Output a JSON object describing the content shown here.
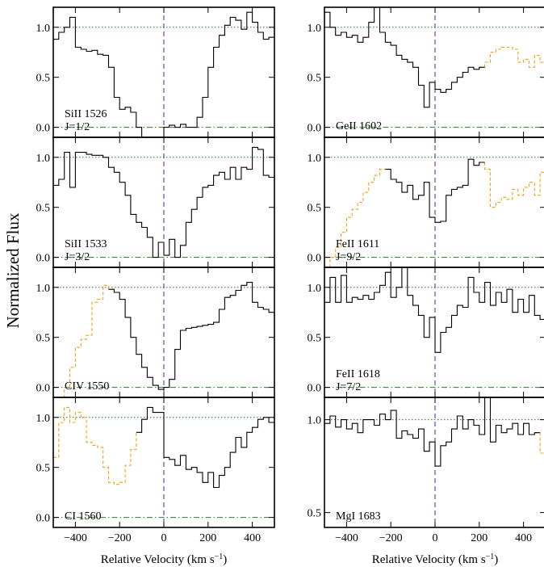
{
  "figure": {
    "ylabel": "Normalized Flux",
    "xlabel_main": "Relative Velocity (km s",
    "xlabel_sup": "−1",
    "xlabel_end": ")"
  },
  "chart_data": {
    "type": "line",
    "xlim": [
      -500,
      500
    ],
    "x_ticks": [
      -400,
      -200,
      0,
      200,
      400
    ],
    "x_tick_labels": [
      "−400",
      "−200",
      "0",
      "200",
      "400"
    ],
    "reference_lines": {
      "continuum": 1.0,
      "zero": 0.0,
      "velocity_zero": 0
    },
    "panels": [
      {
        "id": "siii1526",
        "column": 0,
        "row": 0,
        "label": "SiII 1526",
        "label2": "J=1/2",
        "ylim": [
          -0.1,
          1.2
        ],
        "yticks": [
          0.0,
          0.5,
          1.0
        ],
        "ytick_labels": [
          "0.0",
          "0.5",
          "1.0"
        ],
        "x": [
          -500,
          -475,
          -450,
          -425,
          -400,
          -375,
          -350,
          -325,
          -300,
          -275,
          -250,
          -225,
          -200,
          -175,
          -150,
          -125,
          -100,
          -75,
          -50,
          -25,
          0,
          25,
          50,
          75,
          100,
          125,
          150,
          175,
          200,
          225,
          250,
          275,
          300,
          325,
          350,
          375,
          400,
          425,
          450,
          475
        ],
        "y": [
          0.88,
          0.95,
          1.0,
          1.1,
          0.8,
          0.78,
          0.76,
          0.77,
          0.73,
          0.72,
          0.6,
          0.3,
          0.18,
          0.2,
          0.15,
          0.0,
          -0.1,
          -0.1,
          -0.1,
          -0.1,
          0.0,
          0.02,
          0.0,
          0.03,
          0.0,
          0.0,
          0.1,
          0.3,
          0.6,
          0.8,
          0.92,
          1.02,
          1.1,
          1.07,
          0.98,
          1.15,
          1.05,
          0.95,
          0.88,
          0.9
        ],
        "blend": []
      },
      {
        "id": "siii1533",
        "column": 0,
        "row": 1,
        "label": "SiII 1533",
        "label2": "J=3/2",
        "ylim": [
          -0.1,
          1.2
        ],
        "yticks": [
          0.0,
          0.5,
          1.0
        ],
        "ytick_labels": [
          "0.0",
          "0.5",
          "1.0"
        ],
        "x": [
          -500,
          -475,
          -450,
          -425,
          -400,
          -375,
          -350,
          -325,
          -300,
          -275,
          -250,
          -225,
          -200,
          -175,
          -150,
          -125,
          -100,
          -75,
          -50,
          -25,
          0,
          25,
          50,
          75,
          100,
          125,
          150,
          175,
          200,
          225,
          250,
          275,
          300,
          325,
          350,
          375,
          400,
          425,
          450,
          475
        ],
        "y": [
          0.72,
          0.78,
          1.05,
          0.7,
          1.05,
          1.05,
          1.03,
          1.02,
          1.02,
          1.0,
          0.9,
          0.85,
          0.75,
          0.62,
          0.43,
          0.35,
          0.3,
          0.2,
          0.0,
          0.15,
          0.02,
          0.18,
          0.0,
          0.12,
          0.35,
          0.48,
          0.6,
          0.7,
          0.72,
          0.82,
          0.85,
          0.78,
          0.9,
          0.78,
          0.9,
          0.88,
          1.1,
          1.08,
          0.82,
          0.8
        ],
        "blend": []
      },
      {
        "id": "civ1550",
        "column": 0,
        "row": 2,
        "label": "CIV 1550",
        "label2": "",
        "ylim": [
          -0.1,
          1.2
        ],
        "yticks": [
          0.0,
          0.5,
          1.0
        ],
        "ytick_labels": [
          "0.0",
          "0.5",
          "1.0"
        ],
        "x": [
          -250,
          -225,
          -200,
          -175,
          -150,
          -125,
          -100,
          -75,
          -50,
          -25,
          0,
          25,
          50,
          75,
          100,
          125,
          150,
          175,
          200,
          225,
          250,
          275,
          300,
          325,
          350,
          375,
          400,
          425,
          450,
          475
        ],
        "y": [
          0.98,
          0.95,
          0.88,
          0.7,
          0.5,
          0.33,
          0.2,
          0.1,
          0.02,
          -0.02,
          0.0,
          0.08,
          0.38,
          0.57,
          0.59,
          0.6,
          0.61,
          0.62,
          0.63,
          0.65,
          0.78,
          0.9,
          0.92,
          0.97,
          1.02,
          1.05,
          0.85,
          0.8,
          0.78,
          0.75
        ],
        "blend": [
          {
            "x": [
              -500,
              -475,
              -450,
              -425,
              -400,
              -375,
              -350,
              -325,
              -300,
              -275,
              -250
            ],
            "y": [
              -0.1,
              -0.1,
              0.0,
              0.2,
              0.4,
              0.48,
              0.52,
              0.85,
              0.88,
              1.02,
              0.98
            ]
          }
        ]
      },
      {
        "id": "ci1560",
        "column": 0,
        "row": 3,
        "label": "CI 1560",
        "label2": "",
        "ylim": [
          -0.1,
          1.2
        ],
        "yticks": [
          0.0,
          0.5,
          1.0
        ],
        "ytick_labels": [
          "0.0",
          "0.5",
          "1.0"
        ],
        "x": [
          -125,
          -100,
          -75,
          -50,
          -25,
          0,
          25,
          50,
          75,
          100,
          125,
          150,
          175,
          200,
          225,
          250,
          275,
          300,
          325,
          350,
          375,
          400,
          425,
          450,
          475
        ],
        "y": [
          0.85,
          0.98,
          1.1,
          1.05,
          1.05,
          0.6,
          0.58,
          0.52,
          0.62,
          0.48,
          0.5,
          0.45,
          0.35,
          0.45,
          0.3,
          0.42,
          0.5,
          0.65,
          0.8,
          0.7,
          0.85,
          0.9,
          0.98,
          1.0,
          0.95
        ],
        "blend": [
          {
            "x": [
              -500,
              -475,
              -450,
              -425,
              -400,
              -375,
              -350,
              -325,
              -300,
              -275,
              -250,
              -225,
              -200,
              -175,
              -150,
              -125
            ],
            "y": [
              0.6,
              0.95,
              1.1,
              0.95,
              1.05,
              1.0,
              0.75,
              0.72,
              0.7,
              0.5,
              0.35,
              0.33,
              0.35,
              0.52,
              0.68,
              0.85
            ]
          }
        ]
      },
      {
        "id": "geii1602",
        "column": 1,
        "row": 0,
        "label": "GeII 1602",
        "label2": "",
        "ylim": [
          -0.1,
          1.2
        ],
        "yticks": [
          0.0,
          0.5,
          1.0
        ],
        "ytick_labels": [
          "0.0",
          "0.5",
          "1.0"
        ],
        "x": [
          -500,
          -475,
          -450,
          -425,
          -400,
          -375,
          -350,
          -325,
          -300,
          -275,
          -250,
          -225,
          -200,
          -175,
          -150,
          -125,
          -100,
          -75,
          -50,
          -25,
          0,
          25,
          50,
          75,
          100,
          125,
          150,
          175,
          200
        ],
        "y": [
          1.15,
          1.0,
          0.92,
          0.95,
          0.9,
          0.92,
          0.85,
          0.9,
          1.05,
          1.2,
          0.95,
          0.85,
          0.82,
          0.72,
          0.68,
          0.65,
          0.6,
          0.42,
          0.2,
          0.45,
          0.38,
          0.35,
          0.38,
          0.45,
          0.5,
          0.55,
          0.6,
          0.58,
          0.6
        ],
        "blend": [
          {
            "x": [
              200,
              225,
              250,
              275,
              300,
              325,
              350,
              375,
              400,
              425,
              450,
              475,
              500
            ],
            "y": [
              0.6,
              0.65,
              0.75,
              0.78,
              0.8,
              0.8,
              0.78,
              0.65,
              0.68,
              0.6,
              0.72,
              0.65,
              0.7
            ]
          }
        ]
      },
      {
        "id": "feii1611",
        "column": 1,
        "row": 1,
        "label": "FeII 1611",
        "label2": "J=9/2",
        "ylim": [
          -0.1,
          1.2
        ],
        "yticks": [
          0.0,
          0.5,
          1.0
        ],
        "ytick_labels": [
          "0.0",
          "0.5",
          "1.0"
        ],
        "x": [
          -225,
          -200,
          -175,
          -150,
          -125,
          -100,
          -75,
          -50,
          -25,
          0,
          25,
          50,
          75,
          100,
          125,
          150,
          175,
          200
        ],
        "y": [
          0.88,
          0.78,
          0.75,
          0.65,
          0.72,
          0.58,
          0.62,
          0.75,
          0.4,
          0.35,
          0.36,
          0.62,
          0.68,
          0.7,
          0.72,
          0.98,
          0.92,
          0.95
        ],
        "blend": [
          {
            "x": [
              -500,
              -475,
              -450,
              -425,
              -400,
              -375,
              -350,
              -325,
              -300,
              -275,
              -250,
              -225
            ],
            "y": [
              -0.1,
              0.0,
              0.1,
              0.25,
              0.4,
              0.48,
              0.55,
              0.65,
              0.75,
              0.82,
              0.88,
              0.88
            ]
          },
          {
            "x": [
              200,
              225,
              250,
              275,
              300,
              325,
              350,
              375,
              400,
              425,
              450,
              475,
              500
            ],
            "y": [
              0.95,
              0.88,
              0.5,
              0.55,
              0.6,
              0.58,
              0.68,
              0.62,
              0.7,
              0.75,
              0.62,
              0.85,
              0.8
            ]
          }
        ]
      },
      {
        "id": "feii1618",
        "column": 1,
        "row": 2,
        "label": "FeII 1618",
        "label2": "J=7/2",
        "ylim": [
          -0.1,
          1.2
        ],
        "yticks": [
          0.0,
          0.5,
          1.0
        ],
        "ytick_labels": [
          "0.0",
          "0.5",
          "1.0"
        ],
        "x": [
          -500,
          -475,
          -450,
          -425,
          -400,
          -375,
          -350,
          -325,
          -300,
          -275,
          -250,
          -225,
          -200,
          -175,
          -150,
          -125,
          -100,
          -75,
          -50,
          -25,
          0,
          25,
          50,
          75,
          100,
          125,
          150,
          175,
          200,
          225,
          250,
          275,
          300,
          325,
          350,
          375,
          400,
          425,
          450,
          475
        ],
        "y": [
          0.85,
          1.1,
          0.85,
          1.12,
          0.85,
          0.9,
          0.88,
          0.92,
          0.88,
          0.95,
          1.02,
          1.15,
          0.9,
          1.0,
          1.2,
          0.92,
          0.82,
          0.72,
          0.5,
          0.7,
          0.35,
          0.55,
          0.6,
          0.72,
          0.82,
          0.8,
          1.1,
          0.95,
          0.85,
          1.05,
          0.82,
          0.95,
          0.85,
          0.98,
          0.75,
          0.88,
          0.75,
          0.92,
          0.72,
          0.68
        ],
        "blend": []
      },
      {
        "id": "mgi1683",
        "column": 1,
        "row": 3,
        "label": "MgI 1683",
        "label2": "",
        "ylim": [
          0.42,
          1.12
        ],
        "yticks": [
          0.5,
          1.0
        ],
        "ytick_labels": [
          "0.5",
          "1.0"
        ],
        "x": [
          -500,
          -475,
          -450,
          -425,
          -400,
          -375,
          -350,
          -325,
          -300,
          -275,
          -250,
          -225,
          -200,
          -175,
          -150,
          -125,
          -100,
          -75,
          -50,
          -25,
          0,
          25,
          50,
          75,
          100,
          125,
          150,
          175,
          200,
          225,
          250,
          275,
          300,
          325,
          350,
          375,
          400,
          425,
          450
        ],
        "y": [
          0.98,
          1.02,
          0.96,
          1.0,
          0.95,
          0.98,
          0.93,
          1.0,
          1.0,
          0.97,
          1.03,
          1.0,
          1.05,
          0.9,
          0.94,
          0.92,
          0.9,
          0.95,
          0.83,
          0.88,
          0.75,
          0.86,
          0.88,
          0.95,
          1.02,
          0.95,
          1.0,
          0.97,
          0.92,
          1.12,
          0.88,
          0.97,
          0.93,
          0.95,
          0.98,
          0.92,
          0.98,
          0.92,
          0.93
        ],
        "blend": [
          {
            "x": [
              450,
              475,
              500
            ],
            "y": [
              0.93,
              0.82,
              0.8
            ]
          }
        ]
      }
    ]
  }
}
